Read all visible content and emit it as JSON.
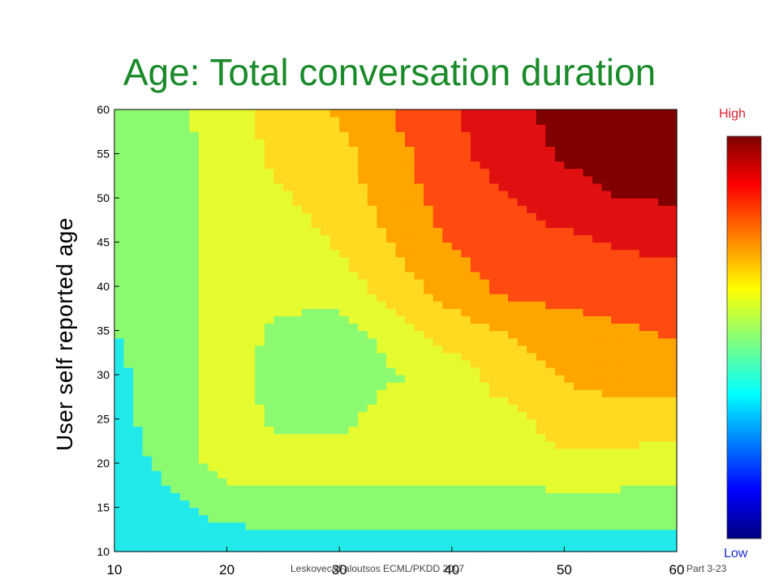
{
  "slide": {
    "title": "Age: Total conversation duration",
    "footer": "Leskovec&Faloutsos ECML/PKDD 2007",
    "part": "Part 3-23"
  },
  "colorbar": {
    "high_label": "High",
    "low_label": "Low"
  },
  "chart_data": {
    "type": "heatmap",
    "title": "Age: Total conversation duration",
    "xlabel": "",
    "ylabel": "User self reported age",
    "xlim": [
      10,
      60
    ],
    "ylim": [
      10,
      60
    ],
    "x_ticks": [
      10,
      20,
      30,
      40,
      50,
      60
    ],
    "y_ticks": [
      10,
      15,
      20,
      25,
      30,
      35,
      40,
      45,
      50,
      55,
      60
    ],
    "levels": [
      "#1c9bd6",
      "#22eaea",
      "#8cfa70",
      "#e6fa30",
      "#ffda20",
      "#ffa500",
      "#ff4a10",
      "#e01010",
      "#800000"
    ],
    "x": [
      10,
      15,
      20,
      25,
      30,
      35,
      40,
      45,
      50,
      55,
      60
    ],
    "y": [
      10,
      15,
      20,
      25,
      30,
      35,
      40,
      45,
      50,
      55,
      60
    ],
    "z": [
      [
        1,
        1,
        1,
        1,
        1,
        1,
        1,
        1,
        1,
        1,
        1
      ],
      [
        0.5,
        1.3,
        1.8,
        2,
        2,
        2,
        2,
        2,
        2,
        2,
        2
      ],
      [
        1,
        1.8,
        3,
        3,
        3,
        3,
        3,
        3,
        3.3,
        3.2,
        3
      ],
      [
        1.2,
        2,
        3,
        2.2,
        2.2,
        3,
        3,
        3.2,
        4,
        4,
        4
      ],
      [
        1.3,
        2,
        3,
        2,
        2,
        2.4,
        3,
        4,
        4.6,
        5,
        5
      ],
      [
        1.5,
        2,
        3,
        2.2,
        2,
        3,
        4,
        4.6,
        5,
        5.4,
        5.6
      ],
      [
        1.6,
        2,
        3,
        3,
        3,
        4,
        5,
        5.8,
        6,
        6,
        6
      ],
      [
        1.7,
        2,
        3,
        3,
        3.6,
        4.6,
        5.6,
        6,
        6.2,
        6.6,
        6.8
      ],
      [
        1.8,
        2,
        3,
        3.4,
        4,
        5,
        6,
        6.4,
        7.2,
        7.5,
        7.6
      ],
      [
        1.9,
        2.1,
        3,
        3.8,
        4.2,
        5.2,
        6.2,
        7,
        7.6,
        7.8,
        7.9
      ],
      [
        2,
        2.2,
        3,
        4,
        4.6,
        5.6,
        6.4,
        7.2,
        7.8,
        7.9,
        8
      ]
    ]
  }
}
